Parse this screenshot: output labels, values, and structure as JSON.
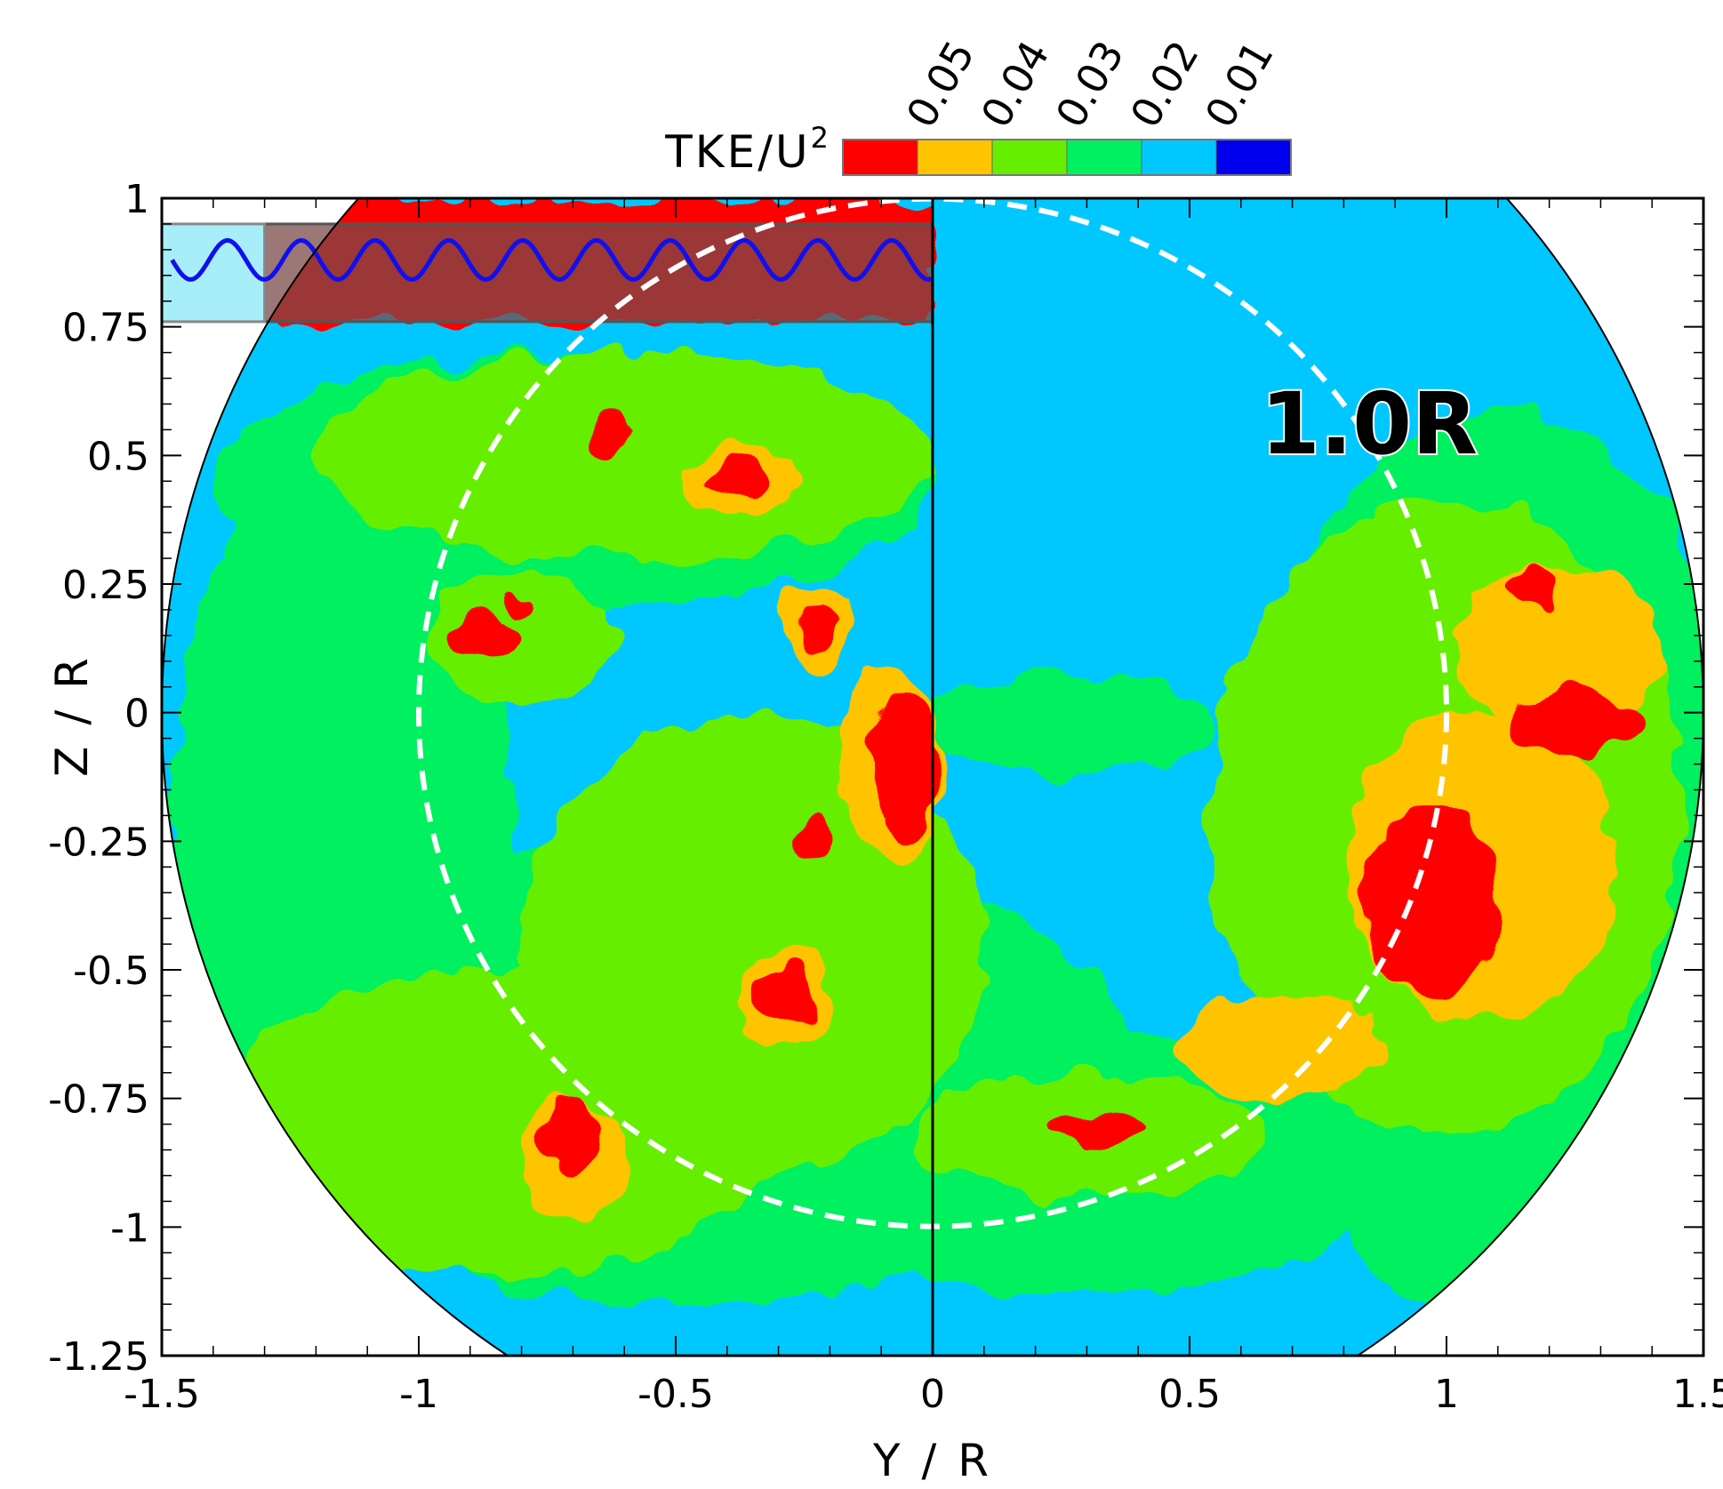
{
  "chart_data": {
    "type": "heatmap",
    "colorbar": {
      "title_main": "TKE/U",
      "title_sup": "2",
      "levels": [
        0.05,
        0.04,
        0.03,
        0.02,
        0.01
      ],
      "level_labels": [
        "0.05",
        "0.04",
        "0.03",
        "0.02",
        "0.01"
      ],
      "colors": [
        "#ff0000",
        "#ffc400",
        "#66ee00",
        "#00f060",
        "#00c8ff",
        "#0000ee"
      ]
    },
    "xlabel": "Y / R",
    "ylabel": "Z / R",
    "xlim": [
      -1.5,
      1.5
    ],
    "ylim": [
      -1.25,
      1
    ],
    "xticks": [
      -1.5,
      -1,
      -0.5,
      0,
      0.5,
      1,
      1.5
    ],
    "xtick_labels": [
      "-1.5",
      "-1",
      "-0.5",
      "0",
      "0.5",
      "1",
      "1.5"
    ],
    "yticks": [
      1,
      0.75,
      0.5,
      0.25,
      0,
      -0.25,
      -0.5,
      -0.75,
      -1,
      -1.25
    ],
    "ytick_labels": [
      "1",
      "0.75",
      "0.5",
      "0.25",
      "0",
      "-0.25",
      "-0.5",
      "-0.75",
      "-1",
      "-1.25"
    ],
    "annotation": "1.0R",
    "rotor_circle_radius": 1.0,
    "measurement_domain_radius": 1.5,
    "divider_y": 0,
    "shaded_band": {
      "z_min": 0.76,
      "z_max": 0.95,
      "y_min": -1.5,
      "y_max": 0
    },
    "wave_z": 0.88,
    "regions": [
      {
        "level": 0.05,
        "type": "band",
        "z_min": 0.76,
        "z_max": 1.0,
        "y_min": -1.5,
        "y_max": 0
      },
      {
        "level": 0.05,
        "cx": -0.87,
        "cz": 0.15,
        "rx": 0.06,
        "rz": 0.04
      },
      {
        "level": 0.05,
        "cx": -0.63,
        "cz": 0.55,
        "rx": 0.04,
        "rz": 0.04
      },
      {
        "level": 0.05,
        "cx": -0.37,
        "cz": 0.45,
        "rx": 0.07,
        "rz": 0.035
      },
      {
        "level": 0.05,
        "cx": -0.22,
        "cz": 0.17,
        "rx": 0.04,
        "rz": 0.05
      },
      {
        "level": 0.05,
        "cx": -0.8,
        "cz": 0.21,
        "rx": 0.025,
        "rz": 0.02
      },
      {
        "level": 0.05,
        "cx": -0.05,
        "cz": -0.1,
        "rx": 0.06,
        "rz": 0.14
      },
      {
        "level": 0.05,
        "cx": -0.24,
        "cz": -0.24,
        "rx": 0.04,
        "rz": 0.04
      },
      {
        "level": 0.05,
        "cx": -0.29,
        "cz": -0.55,
        "rx": 0.06,
        "rz": 0.06
      },
      {
        "level": 0.05,
        "cx": -0.7,
        "cz": -0.82,
        "rx": 0.06,
        "rz": 0.07
      },
      {
        "level": 0.05,
        "cx": 0.33,
        "cz": -0.81,
        "rx": 0.09,
        "rz": 0.03
      },
      {
        "level": 0.05,
        "cx": 0.97,
        "cz": -0.37,
        "rx": 0.13,
        "rz": 0.18
      },
      {
        "level": 0.05,
        "cx": 1.17,
        "cz": 0.24,
        "rx": 0.05,
        "rz": 0.04
      },
      {
        "level": 0.05,
        "cx": 1.25,
        "cz": -0.02,
        "rx": 0.13,
        "rz": 0.06
      },
      {
        "level": 0.04,
        "cx": 1.07,
        "cz": -0.3,
        "rx": 0.26,
        "rz": 0.3
      },
      {
        "level": 0.04,
        "cx": 0.68,
        "cz": -0.65,
        "rx": 0.2,
        "rz": 0.1
      },
      {
        "level": 0.04,
        "cx": 1.22,
        "cz": 0.12,
        "rx": 0.2,
        "rz": 0.17
      },
      {
        "level": 0.04,
        "cx": -0.7,
        "cz": -0.87,
        "rx": 0.11,
        "rz": 0.12
      },
      {
        "level": 0.04,
        "cx": -0.37,
        "cz": 0.45,
        "rx": 0.11,
        "rz": 0.07
      },
      {
        "level": 0.04,
        "cx": -0.22,
        "cz": 0.17,
        "rx": 0.07,
        "rz": 0.08
      },
      {
        "level": 0.04,
        "cx": -0.29,
        "cz": -0.55,
        "rx": 0.09,
        "rz": 0.09
      },
      {
        "level": 0.04,
        "cx": -0.08,
        "cz": -0.1,
        "rx": 0.1,
        "rz": 0.19
      },
      {
        "level": 0.03,
        "cx": 1.0,
        "cz": -0.2,
        "rx": 0.46,
        "rz": 0.62
      },
      {
        "level": 0.03,
        "cx": -0.35,
        "cz": -0.45,
        "rx": 0.45,
        "rz": 0.45
      },
      {
        "level": 0.03,
        "cx": -0.85,
        "cz": -0.8,
        "rx": 0.55,
        "rz": 0.3
      },
      {
        "level": 0.03,
        "cx": 0.3,
        "cz": -0.82,
        "rx": 0.35,
        "rz": 0.12
      },
      {
        "level": 0.03,
        "cx": -0.6,
        "cz": 0.5,
        "rx": 0.6,
        "rz": 0.2
      },
      {
        "level": 0.03,
        "cx": -0.8,
        "cz": 0.15,
        "rx": 0.18,
        "rz": 0.13
      },
      {
        "level": 0.02,
        "cx": 1.1,
        "cz": -0.3,
        "rx": 0.5,
        "rz": 0.9
      },
      {
        "level": 0.02,
        "cx": -0.5,
        "cz": -0.7,
        "rx": 0.9,
        "rz": 0.45
      },
      {
        "level": 0.02,
        "cx": 0.3,
        "cz": -0.88,
        "rx": 0.6,
        "rz": 0.25
      },
      {
        "level": 0.02,
        "cx": -1.15,
        "cz": -0.2,
        "rx": 0.33,
        "rz": 0.7
      },
      {
        "level": 0.02,
        "cx": -0.7,
        "cz": 0.45,
        "rx": 0.7,
        "rz": 0.25
      },
      {
        "level": 0.02,
        "cx": 0.25,
        "cz": -0.02,
        "rx": 0.3,
        "rz": 0.1
      },
      {
        "level": 0.01,
        "cx": 0.35,
        "cz": 0.6,
        "rx": 0.1,
        "rz": 0.1
      },
      {
        "level": 0.01,
        "cx": 0.39,
        "cz": 0.3,
        "rx": 0.06,
        "rz": 0.08
      },
      {
        "level": 0.01,
        "cx": -0.75,
        "cz": -0.1,
        "rx": 0.07,
        "rz": 0.06
      },
      {
        "level": 0.01,
        "cx": -0.65,
        "cz": -0.28,
        "rx": 0.07,
        "rz": 0.03
      },
      {
        "level": 0.01,
        "cx": -0.45,
        "cz": 0.1,
        "rx": 0.04,
        "rz": 0.03
      },
      {
        "level": 0.01,
        "cx": -1.3,
        "cz": 0.35,
        "rx": 0.05,
        "rz": 0.04
      },
      {
        "level": 0.01,
        "cx": 1.35,
        "cz": 0.9,
        "rx": 0.25,
        "rz": 0.2
      },
      {
        "level": 0.01,
        "cx": 1.43,
        "cz": 0.5,
        "rx": 0.1,
        "rz": 0.3
      },
      {
        "level": 0.01,
        "cx": 1.45,
        "cz": -0.3,
        "rx": 0.08,
        "rz": 0.1
      },
      {
        "level": 0.01,
        "cx": 1.25,
        "cz": -1.0,
        "rx": 0.35,
        "rz": 0.22
      },
      {
        "level": 0.01,
        "cx": 0.7,
        "cz": -1.18,
        "rx": 0.55,
        "rz": 0.12
      },
      {
        "level": 0.01,
        "cx": -0.65,
        "cz": -1.2,
        "rx": 0.15,
        "rz": 0.07
      },
      {
        "level": 0.01,
        "cx": 0.65,
        "cz": 0.9,
        "rx": 0.04,
        "rz": 0.02
      }
    ]
  }
}
